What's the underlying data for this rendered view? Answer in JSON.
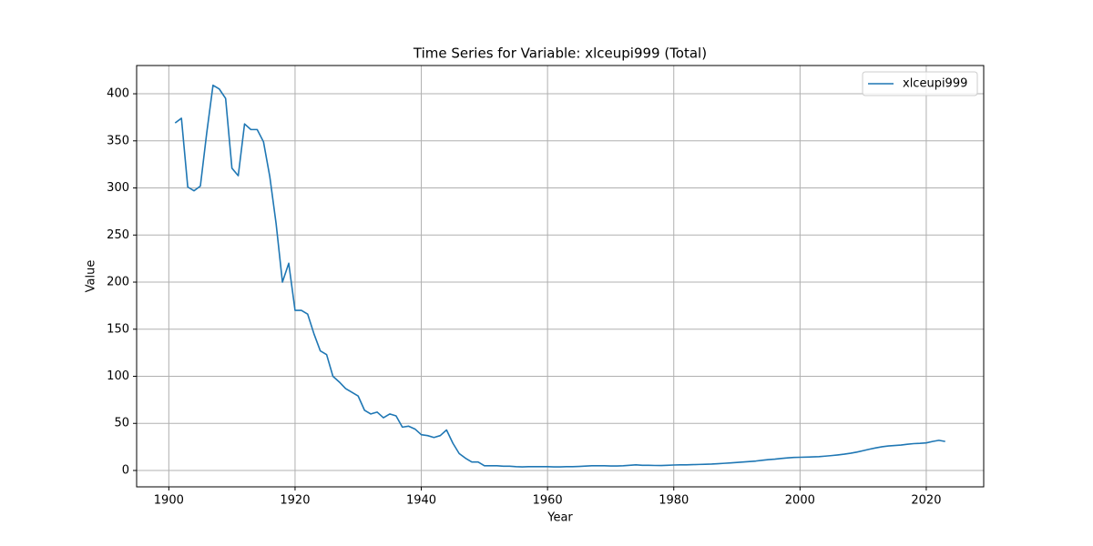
{
  "chart_data": {
    "type": "line",
    "title": "Time Series for Variable: xlceupi999 (Total)",
    "x_label": "Year",
    "y_label": "Value",
    "x": [
      1901,
      1902,
      1903,
      1904,
      1905,
      1906,
      1907,
      1908,
      1909,
      1910,
      1911,
      1912,
      1913,
      1914,
      1915,
      1916,
      1917,
      1918,
      1919,
      1920,
      1921,
      1922,
      1923,
      1924,
      1925,
      1926,
      1927,
      1928,
      1929,
      1930,
      1931,
      1932,
      1933,
      1934,
      1935,
      1936,
      1937,
      1938,
      1939,
      1940,
      1941,
      1942,
      1943,
      1944,
      1945,
      1946,
      1947,
      1948,
      1949,
      1950,
      1951,
      1952,
      1953,
      1954,
      1955,
      1956,
      1957,
      1958,
      1959,
      1960,
      1961,
      1962,
      1963,
      1964,
      1965,
      1966,
      1967,
      1968,
      1969,
      1970,
      1971,
      1972,
      1973,
      1974,
      1975,
      1976,
      1977,
      1978,
      1979,
      1980,
      1981,
      1982,
      1983,
      1984,
      1985,
      1986,
      1987,
      1988,
      1989,
      1990,
      1991,
      1992,
      1993,
      1994,
      1995,
      1996,
      1997,
      1998,
      1999,
      2000,
      2001,
      2002,
      2003,
      2004,
      2005,
      2006,
      2007,
      2008,
      2009,
      2010,
      2011,
      2012,
      2013,
      2014,
      2015,
      2016,
      2017,
      2018,
      2019,
      2020,
      2021,
      2022,
      2023
    ],
    "series": [
      {
        "name": "xlceupi999",
        "color": "#1f77b4",
        "values": [
          369,
          374,
          301,
          297,
          302,
          358,
          409,
          405,
          395,
          321,
          313,
          368,
          362,
          362,
          349,
          312,
          262,
          200,
          220,
          170,
          170,
          166,
          145,
          127,
          123,
          100,
          94,
          87,
          83,
          79,
          64,
          60,
          62,
          56,
          60,
          58,
          46,
          47,
          44,
          38,
          37,
          35,
          37,
          43,
          29,
          18,
          13,
          9,
          9,
          5,
          5,
          5,
          4.5,
          4.5,
          4,
          3.8,
          4,
          4,
          4,
          4,
          3.8,
          3.8,
          4,
          4,
          4.3,
          4.6,
          5,
          5,
          5,
          4.8,
          4.8,
          5,
          5.5,
          6,
          5.5,
          5.5,
          5.3,
          5.2,
          5.5,
          5.8,
          6,
          6,
          6.2,
          6.4,
          6.6,
          6.8,
          7.2,
          7.6,
          8,
          8.5,
          9,
          9.5,
          10,
          10.8,
          11.5,
          12,
          12.7,
          13.3,
          13.8,
          14,
          14.2,
          14.4,
          14.7,
          15.2,
          15.8,
          16.5,
          17.3,
          18.3,
          19.5,
          21,
          22.6,
          24,
          25.2,
          26,
          26.5,
          27,
          27.8,
          28.5,
          28.8,
          29.3,
          30.8,
          32,
          30.8
        ]
      }
    ],
    "xlim": [
      1894.9,
      2029.1
    ],
    "xticks": [
      1900,
      1920,
      1940,
      1960,
      1980,
      2000,
      2020
    ],
    "ylim": [
      -17.4,
      430
    ],
    "yticks": [
      0,
      50,
      100,
      150,
      200,
      250,
      300,
      350,
      400
    ],
    "grid": true,
    "legend": "upper-right"
  }
}
